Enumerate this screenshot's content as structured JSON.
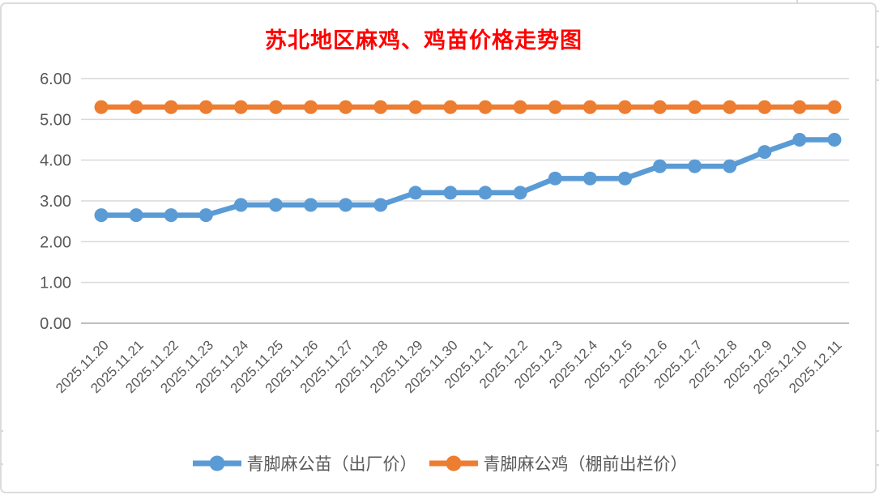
{
  "page": {
    "background": "#ffffff",
    "frame_border_color": "#dcdcdc"
  },
  "chart_data": {
    "type": "line",
    "title": "苏北地区麻鸡、鸡苗价格走势图",
    "title_color": "#ff0000",
    "categories": [
      "2025.11.20",
      "2025.11.21",
      "2025.11.22",
      "2025.11.23",
      "2025.11.24",
      "2025.11.25",
      "2025.11.26",
      "2025.11.27",
      "2025.11.28",
      "2025.11.29",
      "2025.11.30",
      "2025.12.1",
      "2025.12.2",
      "2025.12.3",
      "2025.12.4",
      "2025.12.5",
      "2025.12.6",
      "2025.12.7",
      "2025.12.8",
      "2025.12.9",
      "2025.12.10",
      "2025.12.11"
    ],
    "series": [
      {
        "name": "青脚麻公苗（出厂价）",
        "color": "#5b9bd5",
        "values": [
          2.65,
          2.65,
          2.65,
          2.65,
          2.9,
          2.9,
          2.9,
          2.9,
          2.9,
          3.2,
          3.2,
          3.2,
          3.2,
          3.55,
          3.55,
          3.55,
          3.85,
          3.85,
          3.85,
          4.2,
          4.5,
          4.5
        ]
      },
      {
        "name": "青脚麻公鸡（棚前出栏价）",
        "color": "#ed7d31",
        "values": [
          5.3,
          5.3,
          5.3,
          5.3,
          5.3,
          5.3,
          5.3,
          5.3,
          5.3,
          5.3,
          5.3,
          5.3,
          5.3,
          5.3,
          5.3,
          5.3,
          5.3,
          5.3,
          5.3,
          5.3,
          5.3,
          5.3
        ]
      }
    ],
    "xlabel": "",
    "ylabel": "",
    "ylim": [
      0,
      6
    ],
    "ytick_step": 1,
    "ytick_labels": [
      "0.00",
      "1.00",
      "2.00",
      "3.00",
      "4.00",
      "5.00",
      "6.00"
    ],
    "grid": true,
    "gridline_color": "#d9d9d9",
    "axis_line_color": "#bfbfbf",
    "axis_label_color": "#595959",
    "legend_position": "bottom"
  }
}
